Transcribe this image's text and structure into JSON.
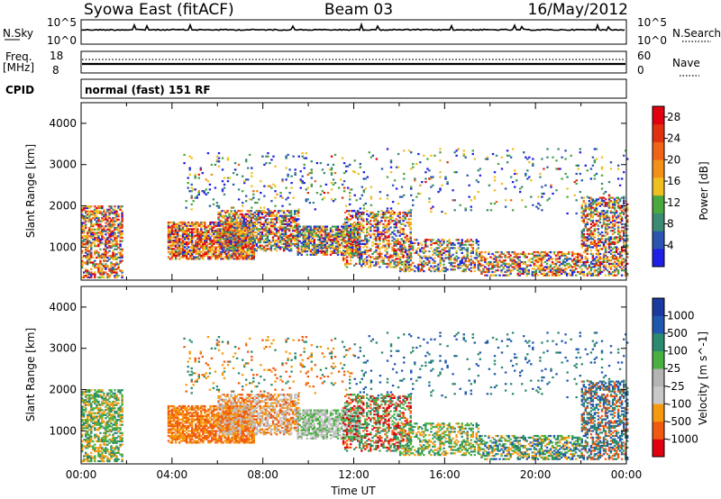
{
  "header": {
    "station": "Syowa East (fitACF)",
    "beam": "Beam 03",
    "date": "16/May/2012"
  },
  "strips": {
    "nsky_label": "N.Sky",
    "nsky_ticks": [
      "10^5",
      "10^0"
    ],
    "nsearch_label": "N.Search",
    "freq_label_1": "Freq.",
    "freq_label_2": "[MHz]",
    "freq_ticks": [
      "18",
      "8"
    ],
    "nave_label": "Nave",
    "nave_ticks": [
      "60",
      "0"
    ],
    "cpid_label": "CPID",
    "cpid_value": "normal (fast) 151 RF"
  },
  "colors": {
    "power": [
      "#1f1fe6",
      "#2a55b0",
      "#3a8a74",
      "#4aa840",
      "#f0c020",
      "#f39018",
      "#f06418",
      "#e03010",
      "#e00010"
    ],
    "velocity": [
      "#e00010",
      "#f05a10",
      "#f59a10",
      "#c8c8c8",
      "#b4b4b4",
      "#48b040",
      "#2a8a70",
      "#2058b0",
      "#1a3aa0"
    ]
  },
  "chart_data": [
    {
      "type": "heatmap",
      "name": "power-panel",
      "ylabel": "Slant Range [km]",
      "x_ticks": [
        "00:00",
        "04:00",
        "08:00",
        "12:00",
        "16:00",
        "20:00",
        "00:00"
      ],
      "y_ticks": [
        1000,
        2000,
        3000,
        4000
      ],
      "ylim": [
        200,
        4500
      ],
      "xlim_hours": [
        0,
        24
      ],
      "colorbar": {
        "label": "Power [dB]",
        "ticks": [
          "4",
          "8",
          "12",
          "16",
          "20",
          "24",
          "28"
        ],
        "range": [
          0,
          30
        ]
      }
    },
    {
      "type": "heatmap",
      "name": "velocity-panel",
      "ylabel": "Slant Range [km]",
      "xlabel": "Time UT",
      "x_ticks": [
        "00:00",
        "04:00",
        "08:00",
        "12:00",
        "16:00",
        "20:00",
        "00:00"
      ],
      "y_ticks": [
        1000,
        2000,
        3000,
        4000
      ],
      "ylim": [
        200,
        4500
      ],
      "xlim_hours": [
        0,
        24
      ],
      "colorbar": {
        "label": "Velocity [m s^-1]",
        "ticks": [
          "1000",
          "500",
          "100",
          "25",
          "-25",
          "-100",
          "-500",
          "-1000"
        ]
      }
    }
  ]
}
